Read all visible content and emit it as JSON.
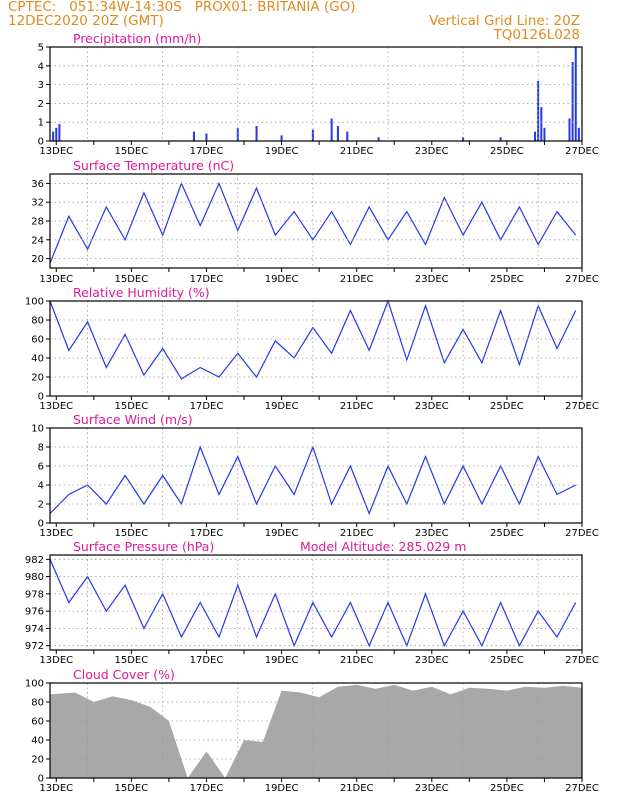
{
  "header": {
    "line1": "CPTEC:   051:34W-14:30S   PROX01: BRITANIA (GO)",
    "line2": "12DEC2020 20Z (GMT)",
    "grid_note": "Vertical Grid Line: 20Z",
    "code": "TQ0126L028"
  },
  "colors": {
    "header": "#e08a1e",
    "title": "#e0189a",
    "line": "#2438e8",
    "cloud": "#a8a8a8",
    "grid": "#9a9a9a"
  },
  "x_axis": {
    "start": "12DEC2020 20Z",
    "end": "27DEC2020 00Z",
    "labels": [
      "13DEC",
      "15DEC",
      "17DEC",
      "19DEC",
      "21DEC",
      "23DEC",
      "25DEC",
      "27DEC"
    ]
  },
  "chart_data": [
    {
      "type": "bar",
      "title": "Precipitation (mm/h)",
      "ylim": [
        0,
        5
      ],
      "yticks": [
        0,
        1,
        2,
        3,
        4,
        5
      ],
      "x": [
        "12DEC 22Z",
        "13DEC 00Z",
        "13DEC 02Z",
        "16DEC 16Z",
        "17DEC 00Z",
        "17DEC 20Z",
        "18DEC 08Z",
        "19DEC 00Z",
        "19DEC 20Z",
        "20DEC 08Z",
        "20DEC 12Z",
        "20DEC 18Z",
        "21DEC 14Z",
        "23DEC 20Z",
        "24DEC 20Z",
        "25DEC 18Z",
        "25DEC 20Z",
        "25DEC 22Z",
        "26DEC 00Z",
        "26DEC 16Z",
        "26DEC 18Z",
        "26DEC 20Z",
        "26DEC 22Z"
      ],
      "values": [
        0.5,
        0.7,
        0.9,
        0.5,
        0.4,
        0.7,
        0.8,
        0.3,
        0.6,
        1.2,
        0.8,
        0.5,
        0.2,
        0.2,
        0.2,
        0.5,
        3.2,
        1.8,
        0.7,
        1.2,
        4.2,
        5.0,
        0.7
      ]
    },
    {
      "type": "line",
      "title": "Surface Temperature (nC)",
      "ylim": [
        18,
        38
      ],
      "yticks": [
        20,
        24,
        28,
        32,
        36
      ],
      "x": [
        "12DEC 20Z",
        "13DEC 08Z",
        "13DEC 20Z",
        "14DEC 08Z",
        "14DEC 20Z",
        "15DEC 08Z",
        "15DEC 20Z",
        "16DEC 08Z",
        "16DEC 20Z",
        "17DEC 08Z",
        "17DEC 20Z",
        "18DEC 08Z",
        "18DEC 20Z",
        "19DEC 08Z",
        "19DEC 20Z",
        "20DEC 08Z",
        "20DEC 20Z",
        "21DEC 08Z",
        "21DEC 20Z",
        "22DEC 08Z",
        "22DEC 20Z",
        "23DEC 08Z",
        "23DEC 20Z",
        "24DEC 08Z",
        "24DEC 20Z",
        "25DEC 08Z",
        "25DEC 20Z",
        "26DEC 08Z",
        "26DEC 20Z"
      ],
      "values": [
        19,
        29,
        22,
        31,
        24,
        34,
        25,
        36,
        27,
        36,
        26,
        35,
        25,
        30,
        24,
        30,
        23,
        31,
        24,
        30,
        23,
        33,
        25,
        32,
        24,
        31,
        23,
        30,
        25
      ]
    },
    {
      "type": "line",
      "title": "Relative Humidity (%)",
      "ylim": [
        0,
        100
      ],
      "yticks": [
        0,
        20,
        40,
        60,
        80,
        100
      ],
      "x": [
        "12DEC 20Z",
        "13DEC 08Z",
        "13DEC 20Z",
        "14DEC 08Z",
        "14DEC 20Z",
        "15DEC 08Z",
        "15DEC 20Z",
        "16DEC 08Z",
        "16DEC 20Z",
        "17DEC 08Z",
        "17DEC 20Z",
        "18DEC 08Z",
        "18DEC 20Z",
        "19DEC 08Z",
        "19DEC 20Z",
        "20DEC 08Z",
        "20DEC 20Z",
        "21DEC 08Z",
        "21DEC 20Z",
        "22DEC 08Z",
        "22DEC 20Z",
        "23DEC 08Z",
        "23DEC 20Z",
        "24DEC 08Z",
        "24DEC 20Z",
        "25DEC 08Z",
        "25DEC 20Z",
        "26DEC 08Z",
        "26DEC 20Z"
      ],
      "values": [
        100,
        48,
        78,
        30,
        65,
        22,
        50,
        18,
        30,
        20,
        45,
        20,
        58,
        40,
        72,
        45,
        90,
        48,
        100,
        38,
        95,
        35,
        70,
        35,
        90,
        33,
        95,
        50,
        90
      ]
    },
    {
      "type": "line",
      "title": "Surface Wind (m/s)",
      "ylim": [
        0,
        10
      ],
      "yticks": [
        0,
        2,
        4,
        6,
        8,
        10
      ],
      "x": [
        "12DEC 20Z",
        "13DEC 08Z",
        "13DEC 20Z",
        "14DEC 08Z",
        "14DEC 20Z",
        "15DEC 08Z",
        "15DEC 20Z",
        "16DEC 08Z",
        "16DEC 20Z",
        "17DEC 08Z",
        "17DEC 20Z",
        "18DEC 08Z",
        "18DEC 20Z",
        "19DEC 08Z",
        "19DEC 20Z",
        "20DEC 08Z",
        "20DEC 20Z",
        "21DEC 08Z",
        "21DEC 20Z",
        "22DEC 08Z",
        "22DEC 20Z",
        "23DEC 08Z",
        "23DEC 20Z",
        "24DEC 08Z",
        "24DEC 20Z",
        "25DEC 08Z",
        "25DEC 20Z",
        "26DEC 08Z",
        "26DEC 20Z"
      ],
      "values": [
        1,
        3,
        4,
        2,
        5,
        2,
        5,
        2,
        8,
        3,
        7,
        2,
        6,
        3,
        8,
        2,
        6,
        1,
        6,
        2,
        7,
        2,
        6,
        2,
        6,
        2,
        7,
        3,
        4
      ]
    },
    {
      "type": "line",
      "title": "Surface Pressure (hPa)",
      "annotation": "Model Altitude: 285.029 m",
      "ylim": [
        971.5,
        982.5
      ],
      "yticks": [
        972,
        974,
        976,
        978,
        980,
        982
      ],
      "x": [
        "12DEC 20Z",
        "13DEC 08Z",
        "13DEC 20Z",
        "14DEC 08Z",
        "14DEC 20Z",
        "15DEC 08Z",
        "15DEC 20Z",
        "16DEC 08Z",
        "16DEC 20Z",
        "17DEC 08Z",
        "17DEC 20Z",
        "18DEC 08Z",
        "18DEC 20Z",
        "19DEC 08Z",
        "19DEC 20Z",
        "20DEC 08Z",
        "20DEC 20Z",
        "21DEC 08Z",
        "21DEC 20Z",
        "22DEC 08Z",
        "22DEC 20Z",
        "23DEC 08Z",
        "23DEC 20Z",
        "24DEC 08Z",
        "24DEC 20Z",
        "25DEC 08Z",
        "25DEC 20Z",
        "26DEC 08Z",
        "26DEC 20Z"
      ],
      "values": [
        982,
        977,
        980,
        976,
        979,
        974,
        978,
        973,
        977,
        973,
        979,
        973,
        978,
        972,
        977,
        973,
        977,
        972,
        977,
        972,
        978,
        972,
        976,
        972,
        977,
        972,
        976,
        973,
        977
      ]
    },
    {
      "type": "area",
      "title": "Cloud Cover (%)",
      "ylim": [
        0,
        100
      ],
      "yticks": [
        0,
        20,
        40,
        60,
        80,
        100
      ],
      "x": [
        "12DEC 20Z",
        "13DEC 12Z",
        "14DEC 00Z",
        "14DEC 12Z",
        "15DEC 00Z",
        "15DEC 12Z",
        "16DEC 00Z",
        "16DEC 12Z",
        "17DEC 00Z",
        "17DEC 12Z",
        "18DEC 00Z",
        "18DEC 12Z",
        "19DEC 00Z",
        "19DEC 12Z",
        "20DEC 00Z",
        "20DEC 12Z",
        "21DEC 00Z",
        "21DEC 12Z",
        "22DEC 00Z",
        "22DEC 12Z",
        "23DEC 00Z",
        "23DEC 12Z",
        "24DEC 00Z",
        "24DEC 12Z",
        "25DEC 00Z",
        "25DEC 12Z",
        "26DEC 00Z",
        "26DEC 12Z",
        "27DEC 00Z"
      ],
      "values": [
        88,
        90,
        80,
        86,
        82,
        75,
        60,
        0,
        28,
        0,
        40,
        38,
        92,
        90,
        85,
        96,
        98,
        94,
        98,
        92,
        96,
        88,
        95,
        94,
        92,
        96,
        95,
        97,
        95
      ]
    }
  ]
}
